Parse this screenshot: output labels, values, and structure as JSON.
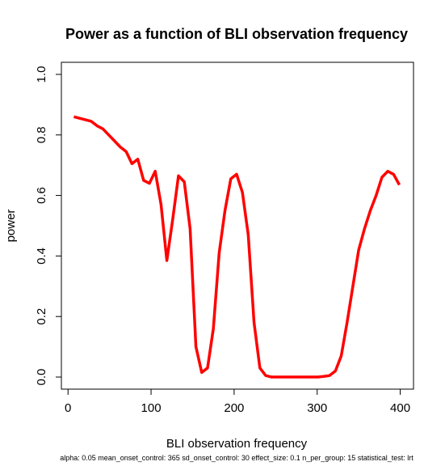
{
  "chart_data": {
    "type": "line",
    "title": "Power as a function of BLI observation frequency",
    "x_label": "BLI observation frequency",
    "y_label": "power",
    "footnote": "alpha: 0.05  mean_onset_control: 365  sd_onset_control: 30  effect_size: 0.1  n_per_group: 15  statistical_test: lrt",
    "x": [
      7,
      14,
      21,
      28,
      35,
      42,
      49,
      56,
      63,
      70,
      77,
      84,
      91,
      98,
      105,
      112,
      119,
      126,
      133,
      140,
      147,
      154,
      161,
      168,
      175,
      182,
      189,
      196,
      203,
      210,
      217,
      224,
      231,
      238,
      245,
      252,
      259,
      266,
      273,
      280,
      287,
      294,
      301,
      308,
      315,
      322,
      329,
      336,
      343,
      350,
      357,
      364,
      371,
      378,
      385,
      392,
      399
    ],
    "series": [
      {
        "name": "power",
        "color": "#ff0000",
        "values": [
          0.86,
          0.855,
          0.85,
          0.845,
          0.83,
          0.82,
          0.8,
          0.78,
          0.76,
          0.745,
          0.705,
          0.72,
          0.65,
          0.64,
          0.68,
          0.57,
          0.385,
          0.52,
          0.665,
          0.645,
          0.49,
          0.1,
          0.015,
          0.03,
          0.16,
          0.41,
          0.55,
          0.655,
          0.67,
          0.61,
          0.47,
          0.18,
          0.03,
          0.005,
          0,
          0,
          0,
          0,
          0,
          0,
          0,
          0,
          0,
          0.002,
          0.005,
          0.02,
          0.07,
          0.18,
          0.3,
          0.42,
          0.49,
          0.55,
          0.6,
          0.66,
          0.68,
          0.67,
          0.635
        ]
      }
    ],
    "xlim": [
      -8,
      416
    ],
    "ylim": [
      -0.04,
      1.04
    ],
    "xticks": [
      0,
      100,
      200,
      300,
      400
    ],
    "yticks": [
      {
        "value": 0,
        "label": "0.0"
      },
      0.2,
      0.4,
      0.6,
      0.8,
      {
        "value": 1,
        "label": "1.0"
      }
    ]
  }
}
